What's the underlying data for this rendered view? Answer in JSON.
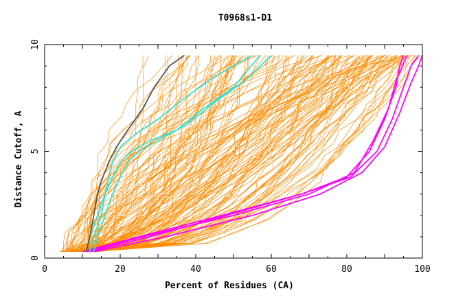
{
  "chart_data": {
    "type": "line",
    "title": "T0968s1-D1",
    "xlabel": "Percent of Residues (CA)",
    "ylabel": "Distance Cutoff, A",
    "xlim": [
      0,
      100
    ],
    "ylim": [
      0,
      10
    ],
    "xticks": [
      0,
      20,
      40,
      60,
      80,
      100
    ],
    "yticks": [
      0,
      5,
      10
    ],
    "grid": false,
    "legend": "none",
    "colors": {
      "background": "#ffffff",
      "axis": "#000000",
      "group": "#ff8c00",
      "dark": "#555555",
      "cyan": "#33e0d8",
      "magenta": "#ff00ff"
    },
    "series": [
      {
        "name": "magenta-1",
        "color": "#ff00ff",
        "x": [
          10,
          25,
          47,
          68,
          81,
          88,
          92,
          95,
          97,
          99
        ],
        "y": [
          0.3,
          1,
          2,
          3,
          3.8,
          5,
          6.5,
          8,
          9,
          9.5
        ]
      },
      {
        "name": "magenta-2",
        "color": "#ff00ff",
        "x": [
          12,
          28,
          48,
          68,
          80,
          86,
          90,
          93,
          94,
          95
        ],
        "y": [
          0.3,
          1,
          2,
          3,
          3.8,
          5,
          6.5,
          8,
          9,
          9.5
        ]
      },
      {
        "name": "magenta-3",
        "color": "#ff00ff",
        "x": [
          13,
          32,
          55,
          73,
          84,
          90,
          94,
          97,
          99,
          100
        ],
        "y": [
          0.3,
          1,
          2,
          3,
          4,
          5.2,
          6.8,
          8.2,
          9,
          9.5
        ]
      },
      {
        "name": "magenta-4",
        "color": "#ff00ff",
        "x": [
          11,
          26,
          50,
          70,
          82,
          87,
          91,
          93,
          95,
          96
        ],
        "y": [
          0.3,
          1,
          2,
          3,
          4,
          5.5,
          7,
          8.3,
          9.1,
          9.5
        ]
      },
      {
        "name": "cyan-1",
        "color": "#33e0d8",
        "x": [
          12,
          13,
          15,
          16,
          18,
          20,
          23,
          28,
          35,
          42,
          50,
          57
        ],
        "y": [
          0.3,
          1,
          2,
          3,
          3.8,
          4.5,
          5,
          5.5,
          6,
          7,
          8,
          9.5
        ]
      },
      {
        "name": "cyan-2",
        "color": "#33e0d8",
        "x": [
          13,
          14,
          16,
          18,
          20,
          22,
          25,
          30,
          38,
          45,
          53,
          60
        ],
        "y": [
          0.3,
          1,
          2,
          3,
          3.8,
          4.5,
          5,
          5.5,
          6.3,
          7.3,
          8.3,
          9.5
        ]
      },
      {
        "name": "cyan-3",
        "color": "#33e0d8",
        "x": [
          11,
          12,
          14,
          16,
          17,
          18,
          20,
          24,
          30,
          37,
          45,
          55
        ],
        "y": [
          0.3,
          1,
          2,
          3,
          3.8,
          4.5,
          5.2,
          5.8,
          6.5,
          7.5,
          8.5,
          9.5
        ]
      },
      {
        "name": "dark-1",
        "color": "#555555",
        "x": [
          11,
          12,
          13,
          14,
          15,
          17,
          19,
          22,
          26,
          29,
          33,
          37
        ],
        "y": [
          0.3,
          1,
          2,
          3,
          3.6,
          4.5,
          5.2,
          6,
          7,
          8,
          9,
          9.5
        ]
      }
    ]
  }
}
